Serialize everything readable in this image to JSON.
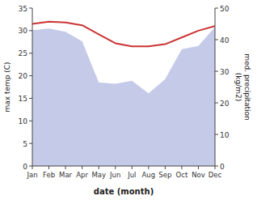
{
  "chart_data": {
    "type": "line",
    "categories": [
      "Jan",
      "Feb",
      "Mar",
      "Apr",
      "May",
      "Jun",
      "Jul",
      "Aug",
      "Sep",
      "Oct",
      "Nov",
      "Dec"
    ],
    "series": [
      {
        "type": "area",
        "axis": "y2",
        "color": "#c5cae9",
        "values": [
          43.0,
          43.5,
          42.5,
          39.5,
          26.5,
          26.0,
          27.0,
          23.0,
          27.5,
          37.0,
          38.0,
          44.0
        ]
      },
      {
        "type": "line",
        "color": "#cc3333",
        "values": [
          31.5,
          32.0,
          31.8,
          31.2,
          29.2,
          27.2,
          26.5,
          26.5,
          27.0,
          28.5,
          30.0,
          31.0
        ]
      }
    ],
    "x_label": "date (month)",
    "y_label": "max temp (C)",
    "y2_label": "med. precipitation\n(kg/m2)",
    "ylim": [
      0,
      35
    ],
    "yticks": [
      0,
      5,
      10,
      15,
      20,
      25,
      30,
      35
    ],
    "y2lim": [
      0,
      50
    ],
    "y2ticks": [
      0,
      10,
      20,
      30,
      40,
      50
    ],
    "grid": false
  }
}
